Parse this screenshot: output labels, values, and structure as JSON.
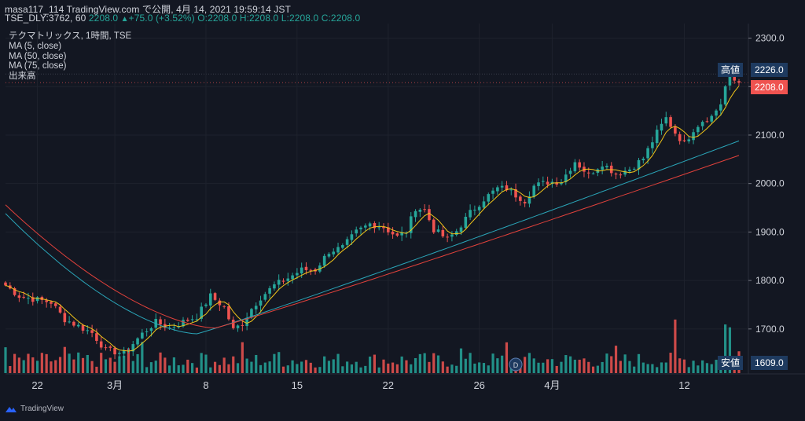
{
  "header": {
    "line1": "masa117_114 TradingView.com で公開, 4月 14, 2021 19:59:14 JST",
    "symbol": "TSE_DLY:3762, 60",
    "last": "2208.0",
    "arrow": "▲",
    "change": "+75.0 (+3.52%)",
    "o": "O:2208.0",
    "h": "H:2208.0",
    "l": "L:2208.0",
    "c": "C:2208.0"
  },
  "legend": {
    "title": "テクマトリックス, 1時間, TSE",
    "ma5": "MA (5, close)",
    "ma50": "MA (50, close)",
    "ma75": "MA (75, close)",
    "volume": "出来高"
  },
  "price_tags": {
    "high_label": "高値",
    "high_value": "2226.0",
    "current_value": "2208.0",
    "low_label": "安値",
    "low_value": "1609.0"
  },
  "footer": {
    "brand": "TradingView",
    "event_marker": "D"
  },
  "colors": {
    "background": "#131722",
    "up": "#26a69a",
    "down": "#ef5350",
    "ma5": "#f0c419",
    "ma50": "#2aa5b8",
    "ma75": "#e0413b",
    "grid": "#1e222d",
    "tag_dark": "#1e3a5f",
    "tag_red": "#ef5350"
  },
  "chart_data": {
    "type": "candlestick",
    "title": "テクマトリックス, 1時間, TSE",
    "ylim": [
      1609,
      2330
    ],
    "y_ticks": [
      1700,
      1800,
      1900,
      2000,
      2100,
      2200,
      2300
    ],
    "y_tick_labels": [
      "1700.0",
      "1800.0",
      "1900.0",
      "2000.0",
      "2100.0",
      "2200.0",
      "2300.0"
    ],
    "x_tick_labels": [
      {
        "label": "22",
        "bar": 7
      },
      {
        "label": "3月",
        "bar": 24
      },
      {
        "label": "8",
        "bar": 44
      },
      {
        "label": "15",
        "bar": 64
      },
      {
        "label": "22",
        "bar": 84
      },
      {
        "label": "26",
        "bar": 104
      },
      {
        "label": "4月",
        "bar": 120
      },
      {
        "label": "12",
        "bar": 149
      }
    ],
    "close_anchors": [
      [
        0,
        1790
      ],
      [
        3,
        1768
      ],
      [
        6,
        1762
      ],
      [
        10,
        1755
      ],
      [
        13,
        1720
      ],
      [
        16,
        1706
      ],
      [
        19,
        1692
      ],
      [
        22,
        1656
      ],
      [
        26,
        1650
      ],
      [
        30,
        1690
      ],
      [
        33,
        1714
      ],
      [
        36,
        1702
      ],
      [
        39,
        1715
      ],
      [
        42,
        1726
      ],
      [
        45,
        1768
      ],
      [
        48,
        1745
      ],
      [
        50,
        1698
      ],
      [
        52,
        1712
      ],
      [
        54,
        1742
      ],
      [
        56,
        1765
      ],
      [
        59,
        1790
      ],
      [
        62,
        1805
      ],
      [
        65,
        1822
      ],
      [
        68,
        1822
      ],
      [
        71,
        1860
      ],
      [
        74,
        1868
      ],
      [
        77,
        1900
      ],
      [
        80,
        1917
      ],
      [
        83,
        1910
      ],
      [
        86,
        1890
      ],
      [
        88,
        1902
      ],
      [
        90,
        1950
      ],
      [
        92,
        1946
      ],
      [
        94,
        1905
      ],
      [
        97,
        1885
      ],
      [
        99,
        1902
      ],
      [
        102,
        1940
      ],
      [
        105,
        1968
      ],
      [
        108,
        1990
      ],
      [
        110,
        1990
      ],
      [
        112,
        1976
      ],
      [
        114,
        1965
      ],
      [
        116,
        1995
      ],
      [
        119,
        2003
      ],
      [
        122,
        2005
      ],
      [
        125,
        2046
      ],
      [
        128,
        2018
      ],
      [
        131,
        2042
      ],
      [
        134,
        2020
      ],
      [
        137,
        2030
      ],
      [
        140,
        2052
      ],
      [
        143,
        2105
      ],
      [
        145,
        2135
      ],
      [
        147,
        2105
      ],
      [
        149,
        2082
      ],
      [
        151,
        2112
      ],
      [
        153,
        2130
      ],
      [
        155,
        2138
      ],
      [
        157,
        2165
      ],
      [
        158,
        2200
      ],
      [
        159,
        2215
      ],
      [
        160,
        2212
      ],
      [
        161,
        2208
      ]
    ],
    "volume_spikes": [
      [
        0,
        2.2
      ],
      [
        13,
        1.5
      ],
      [
        27,
        1.9
      ],
      [
        30,
        1.9
      ],
      [
        44,
        1.4
      ],
      [
        52,
        1.6
      ],
      [
        60,
        1.5
      ],
      [
        100,
        1.5
      ],
      [
        110,
        1.9
      ],
      [
        134,
        1.4
      ],
      [
        147,
        3.0
      ],
      [
        158,
        5.7
      ],
      [
        159,
        3.2
      ],
      [
        161,
        1.7
      ]
    ],
    "ma5": {
      "name": "MA (5, close)",
      "period": 5
    },
    "ma50": {
      "name": "MA (50, close)",
      "period": 50,
      "start": 1938,
      "turn": 1690,
      "end": 2088
    },
    "ma75": {
      "name": "MA (75, close)",
      "period": 75,
      "start": 1956,
      "turn": 1702,
      "end": 2058
    }
  }
}
